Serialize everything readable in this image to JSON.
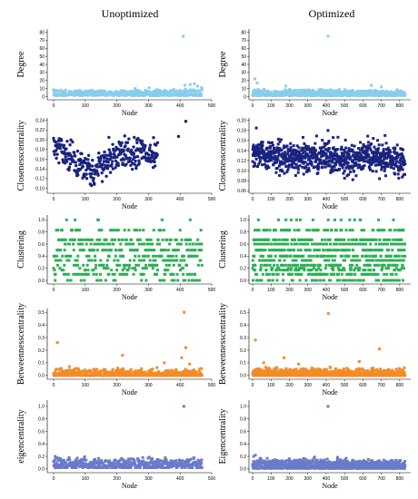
{
  "figure": {
    "column_titles": [
      "Unoptimized",
      "Optimized"
    ]
  },
  "chart_data": [
    {
      "type": "scatter",
      "column": "Unoptimized",
      "row": "degree",
      "title": "",
      "xlabel": "Node",
      "ylabel": "Degree",
      "xlim": [
        -20,
        500
      ],
      "ylim": [
        -4,
        84
      ],
      "xticks": [
        0,
        100,
        200,
        300,
        400,
        500
      ],
      "yticks": [
        0,
        10,
        20,
        30,
        40,
        50,
        60,
        70,
        80
      ],
      "color": "#87CEEB",
      "marker": "square",
      "n_points": 470,
      "profile": [
        [
          0,
          6
        ],
        [
          50,
          5
        ],
        [
          100,
          5
        ],
        [
          150,
          5
        ],
        [
          200,
          5
        ],
        [
          250,
          5
        ],
        [
          300,
          5
        ],
        [
          350,
          6
        ],
        [
          400,
          6
        ],
        [
          450,
          7
        ],
        [
          470,
          7
        ]
      ],
      "spread": 3,
      "background": 2,
      "base": 1,
      "spikes": [
        [
          410,
          75
        ],
        [
          415,
          14
        ],
        [
          432,
          15
        ],
        [
          445,
          16
        ],
        [
          455,
          13
        ],
        [
          468,
          11
        ],
        [
          258,
          10
        ],
        [
          302,
          11
        ]
      ]
    },
    {
      "type": "scatter",
      "column": "Optimized",
      "row": "degree",
      "title": "",
      "xlabel": "Node",
      "ylabel": "Degree",
      "xlim": [
        -20,
        860
      ],
      "ylim": [
        -4,
        84
      ],
      "xticks": [
        0,
        100,
        200,
        300,
        400,
        500,
        600,
        700,
        800
      ],
      "yticks": [
        0,
        10,
        20,
        30,
        40,
        50,
        60,
        70,
        80
      ],
      "color": "#87CEEB",
      "marker": "square",
      "n_points": 830,
      "profile": [
        [
          0,
          6
        ],
        [
          100,
          5
        ],
        [
          200,
          5
        ],
        [
          300,
          5
        ],
        [
          400,
          5
        ],
        [
          500,
          5
        ],
        [
          600,
          5
        ],
        [
          700,
          5
        ],
        [
          830,
          5
        ]
      ],
      "spread": 3,
      "background": 2,
      "base": 1,
      "spikes": [
        [
          410,
          75
        ],
        [
          12,
          22
        ],
        [
          25,
          17
        ],
        [
          180,
          13
        ],
        [
          645,
          14
        ],
        [
          700,
          12
        ]
      ]
    },
    {
      "type": "scatter",
      "column": "Unoptimized",
      "row": "closeness",
      "title": "",
      "xlabel": "Node",
      "ylabel": "Closenesscentrality",
      "xlim": [
        -20,
        500
      ],
      "ylim": [
        0.09,
        0.245
      ],
      "xticks": [
        0,
        100,
        200,
        300,
        400,
        500
      ],
      "yticks": [
        0.1,
        0.12,
        0.14,
        0.16,
        0.18,
        0.2,
        0.22,
        0.24
      ],
      "color": "#1A237E",
      "marker": "circle",
      "n_points": 330,
      "profile": [
        [
          0,
          0.185
        ],
        [
          40,
          0.17
        ],
        [
          80,
          0.145
        ],
        [
          120,
          0.135
        ],
        [
          160,
          0.15
        ],
        [
          200,
          0.17
        ],
        [
          240,
          0.17
        ],
        [
          280,
          0.175
        ],
        [
          320,
          0.17
        ],
        [
          360,
          0.17
        ],
        [
          400,
          0.16
        ],
        [
          440,
          0.15
        ],
        [
          470,
          0.165
        ]
      ],
      "spread": 0.03,
      "background": 0,
      "base": 0.1,
      "spikes": [
        [
          418,
          0.238
        ],
        [
          225,
          0.208
        ],
        [
          175,
          0.205
        ],
        [
          395,
          0.207
        ],
        [
          255,
          0.205
        ]
      ]
    },
    {
      "type": "scatter",
      "column": "Optimized",
      "row": "closeness",
      "title": "",
      "xlabel": "Node",
      "ylabel": "Closenesscentrality",
      "xlim": [
        -20,
        860
      ],
      "ylim": [
        0.055,
        0.205
      ],
      "xticks": [
        0,
        100,
        200,
        300,
        400,
        500,
        600,
        700,
        800
      ],
      "yticks": [
        0.06,
        0.08,
        0.1,
        0.12,
        0.14,
        0.16,
        0.18,
        0.2
      ],
      "color": "#1A237E",
      "marker": "square",
      "n_points": 830,
      "profile": [
        [
          0,
          0.14
        ],
        [
          100,
          0.13
        ],
        [
          200,
          0.125
        ],
        [
          300,
          0.125
        ],
        [
          400,
          0.13
        ],
        [
          500,
          0.12
        ],
        [
          600,
          0.13
        ],
        [
          700,
          0.125
        ],
        [
          830,
          0.115
        ]
      ],
      "spread": 0.03,
      "background": 0,
      "base": 0.08,
      "spikes": [
        [
          20,
          0.185
        ],
        [
          410,
          0.18
        ],
        [
          720,
          0.17
        ],
        [
          500,
          0.085
        ],
        [
          545,
          0.082
        ],
        [
          690,
          0.084
        ],
        [
          795,
          0.085
        ]
      ]
    },
    {
      "type": "scatter",
      "column": "Unoptimized",
      "row": "clustering",
      "title": "",
      "xlabel": "Node",
      "ylabel": "Clustering",
      "xlim": [
        -20,
        500
      ],
      "ylim": [
        -0.06,
        1.08
      ],
      "xticks": [
        0,
        100,
        200,
        300,
        400,
        500
      ],
      "yticks": [
        0.0,
        0.2,
        0.4,
        0.6,
        0.8,
        1.0
      ],
      "color": "#2EB055",
      "marker": "square",
      "n_points": 470,
      "profile": [
        [
          0,
          0.45
        ],
        [
          100,
          0.4
        ],
        [
          200,
          0.4
        ],
        [
          300,
          0.4
        ],
        [
          400,
          0.4
        ],
        [
          420,
          0.3
        ],
        [
          470,
          0.3
        ]
      ],
      "spread": 0.4,
      "background": 0,
      "base": 0.2,
      "levels": [
        0,
        0.1,
        0.17,
        0.2,
        0.25,
        0.33,
        0.4,
        0.5,
        0.6,
        0.67,
        0.83,
        1.0
      ]
    },
    {
      "type": "scatter",
      "column": "Optimized",
      "row": "clustering",
      "title": "",
      "xlabel": "Node",
      "ylabel": "Clustering",
      "xlim": [
        -20,
        860
      ],
      "ylim": [
        -0.06,
        1.08
      ],
      "xticks": [
        0,
        100,
        200,
        300,
        400,
        500,
        600,
        700,
        800
      ],
      "yticks": [
        0.0,
        0.2,
        0.4,
        0.6,
        0.8,
        1.0
      ],
      "color": "#2EB055",
      "marker": "square",
      "n_points": 830,
      "profile": [
        [
          0,
          0.4
        ],
        [
          200,
          0.4
        ],
        [
          400,
          0.4
        ],
        [
          600,
          0.4
        ],
        [
          830,
          0.4
        ]
      ],
      "spread": 0.4,
      "background": 0,
      "base": 0.2,
      "levels": [
        0,
        0.1,
        0.17,
        0.2,
        0.25,
        0.33,
        0.4,
        0.5,
        0.6,
        0.67,
        0.83,
        1.0
      ]
    },
    {
      "type": "scatter",
      "column": "Unoptimized",
      "row": "betweenness",
      "title": "",
      "xlabel": "Node",
      "ylabel": "Betweennesscentrality",
      "xlim": [
        -20,
        500
      ],
      "ylim": [
        -0.03,
        0.53
      ],
      "xticks": [
        0,
        100,
        200,
        300,
        400,
        500
      ],
      "yticks": [
        0.0,
        0.1,
        0.2,
        0.3,
        0.4,
        0.5
      ],
      "color": "#F28C28",
      "marker": "square",
      "n_points": 470,
      "profile": [
        [
          0,
          0.01
        ],
        [
          470,
          0.01
        ]
      ],
      "spread": 0.04,
      "background": 0,
      "base": 0.0,
      "spikes": [
        [
          413,
          0.5
        ],
        [
          12,
          0.26
        ],
        [
          418,
          0.22
        ],
        [
          218,
          0.16
        ],
        [
          350,
          0.1
        ],
        [
          430,
          0.09
        ],
        [
          405,
          0.14
        ],
        [
          50,
          0.07
        ]
      ]
    },
    {
      "type": "scatter",
      "column": "Optimized",
      "row": "betweenness",
      "title": "",
      "xlabel": "Node",
      "ylabel": "Betweennesscentrality",
      "xlim": [
        -20,
        860
      ],
      "ylim": [
        -0.03,
        0.53
      ],
      "xticks": [
        0,
        100,
        200,
        300,
        400,
        500,
        600,
        700,
        800
      ],
      "yticks": [
        0.0,
        0.1,
        0.2,
        0.3,
        0.4,
        0.5
      ],
      "color": "#F28C28",
      "marker": "square",
      "n_points": 830,
      "profile": [
        [
          0,
          0.015
        ],
        [
          830,
          0.01
        ]
      ],
      "spread": 0.04,
      "background": 0,
      "base": 0.0,
      "spikes": [
        [
          412,
          0.49
        ],
        [
          15,
          0.28
        ],
        [
          690,
          0.21
        ],
        [
          170,
          0.14
        ],
        [
          580,
          0.11
        ],
        [
          60,
          0.1
        ],
        [
          250,
          0.09
        ]
      ]
    },
    {
      "type": "scatter",
      "column": "Unoptimized",
      "row": "eigencentrality",
      "title": "",
      "xlabel": "Node",
      "ylabel": "eigencentrality",
      "xlim": [
        -20,
        500
      ],
      "ylim": [
        -0.06,
        1.1
      ],
      "xticks": [
        0,
        100,
        200,
        300,
        400,
        500
      ],
      "yticks": [
        0.0,
        0.2,
        0.4,
        0.6,
        0.8,
        1.0
      ],
      "color": "#6B7BC9",
      "marker": "square",
      "n_points": 470,
      "profile": [
        [
          0,
          0.07
        ],
        [
          470,
          0.07
        ]
      ],
      "spread": 0.1,
      "background": 0,
      "base": 0.02,
      "spikes": [
        [
          412,
          1.0
        ],
        [
          5,
          0.2
        ],
        [
          10,
          0.18
        ],
        [
          245,
          0.16
        ],
        [
          330,
          0.15
        ]
      ]
    },
    {
      "type": "scatter",
      "column": "Optimized",
      "row": "eigencentrality",
      "title": "",
      "xlabel": "Node",
      "ylabel": "Eigencentrality",
      "xlim": [
        -20,
        860
      ],
      "ylim": [
        -0.06,
        1.1
      ],
      "xticks": [
        0,
        100,
        200,
        300,
        400,
        500,
        600,
        700,
        800
      ],
      "yticks": [
        0.0,
        0.2,
        0.4,
        0.6,
        0.8,
        1.0
      ],
      "color": "#6B7BC9",
      "marker": "square",
      "n_points": 830,
      "profile": [
        [
          0,
          0.06
        ],
        [
          830,
          0.05
        ]
      ],
      "spread": 0.1,
      "background": 0,
      "base": 0.01,
      "spikes": [
        [
          410,
          1.0
        ],
        [
          15,
          0.22
        ],
        [
          5,
          0.2
        ],
        [
          690,
          0.13
        ]
      ]
    }
  ]
}
